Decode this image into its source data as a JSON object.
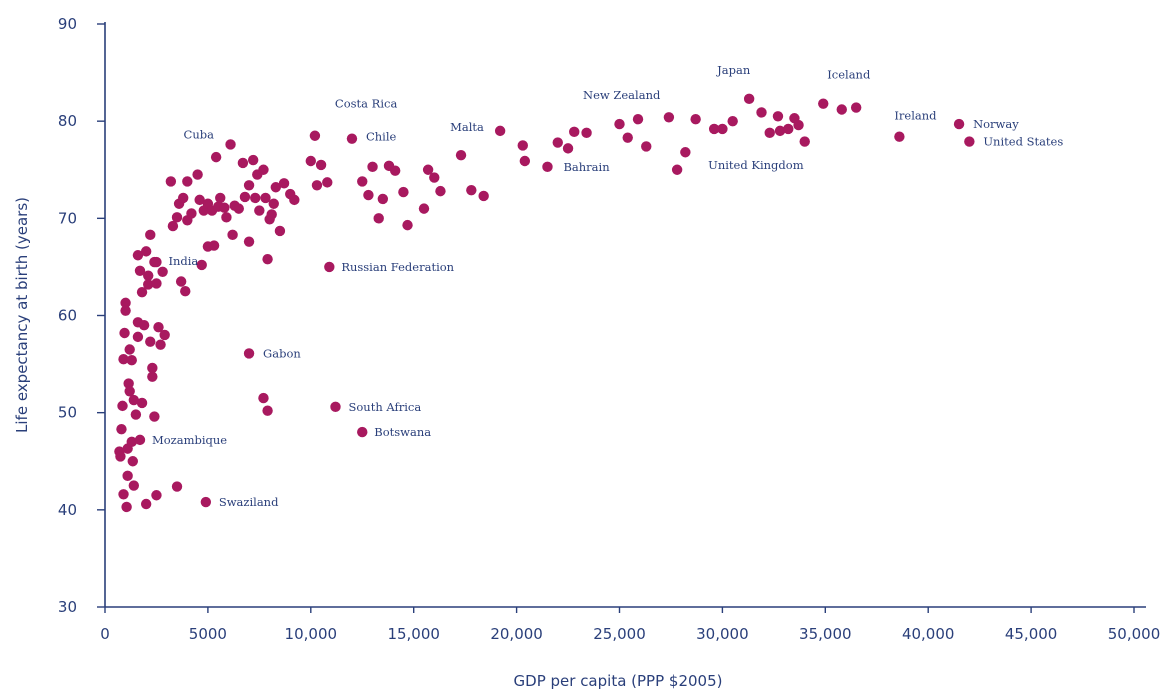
{
  "chart_data": {
    "type": "scatter",
    "xlabel": "GDP per capita (PPP $2005)",
    "ylabel": "Life expectancy at birth (years)",
    "xlim": [
      0,
      50000
    ],
    "ylim": [
      30,
      90
    ],
    "x_ticks": [
      0,
      5000,
      10000,
      15000,
      20000,
      25000,
      30000,
      35000,
      40000,
      45000,
      50000
    ],
    "x_tick_labels": [
      "0",
      "5000",
      "10,000",
      "15,000",
      "20,000",
      "25,000",
      "30,000",
      "35,000",
      "40,000",
      "45,000",
      "50,000"
    ],
    "y_ticks": [
      30,
      40,
      50,
      60,
      70,
      80,
      90
    ],
    "y_tick_labels": [
      "30",
      "40",
      "50",
      "60",
      "70",
      "80",
      "90"
    ],
    "grid": false,
    "marker_color": "#a8195f",
    "axis_color": "#2a3f7a",
    "labeled_points": [
      {
        "label": "Cuba",
        "x": 6100,
        "y": 77.6
      },
      {
        "label": "Costa Rica",
        "x": 10200,
        "y": 78.5
      },
      {
        "label": "Chile",
        "x": 12000,
        "y": 78.2
      },
      {
        "label": "Malta",
        "x": 19200,
        "y": 79.0
      },
      {
        "label": "New Zealand",
        "x": 25900,
        "y": 80.2
      },
      {
        "label": "Japan",
        "x": 31300,
        "y": 82.3
      },
      {
        "label": "Iceland",
        "x": 34900,
        "y": 81.8
      },
      {
        "label": "Ireland",
        "x": 38600,
        "y": 78.4
      },
      {
        "label": "Norway",
        "x": 41500,
        "y": 79.7
      },
      {
        "label": "United States",
        "x": 42000,
        "y": 77.9
      },
      {
        "label": "United Kingdom",
        "x": 29600,
        "y": 79.2
      },
      {
        "label": "Bahrain",
        "x": 21500,
        "y": 75.3
      },
      {
        "label": "India",
        "x": 2500,
        "y": 65.5
      },
      {
        "label": "Russian Federation",
        "x": 10900,
        "y": 65.0
      },
      {
        "label": "Gabon",
        "x": 7000,
        "y": 56.1
      },
      {
        "label": "South Africa",
        "x": 11200,
        "y": 50.6
      },
      {
        "label": "Botswana",
        "x": 12500,
        "y": 48.0
      },
      {
        "label": "Mozambique",
        "x": 1700,
        "y": 47.2
      },
      {
        "label": "Swaziland",
        "x": 4900,
        "y": 40.8
      }
    ],
    "points": [
      [
        700,
        46
      ],
      [
        750,
        45.5
      ],
      [
        800,
        48.3
      ],
      [
        850,
        50.7
      ],
      [
        900,
        41.6
      ],
      [
        900,
        55.5
      ],
      [
        950,
        58.2
      ],
      [
        1000,
        61.3
      ],
      [
        1000,
        60.5
      ],
      [
        1050,
        40.3
      ],
      [
        1100,
        43.5
      ],
      [
        1100,
        46.3
      ],
      [
        1150,
        53
      ],
      [
        1200,
        52.2
      ],
      [
        1200,
        56.5
      ],
      [
        1300,
        55.4
      ],
      [
        1300,
        47
      ],
      [
        1350,
        45
      ],
      [
        1400,
        42.5
      ],
      [
        1400,
        51.3
      ],
      [
        1500,
        49.8
      ],
      [
        1600,
        57.8
      ],
      [
        1600,
        59.3
      ],
      [
        1600,
        66.2
      ],
      [
        1700,
        64.6
      ],
      [
        1800,
        51
      ],
      [
        1800,
        62.4
      ],
      [
        1900,
        59
      ],
      [
        2000,
        40.6
      ],
      [
        2000,
        66.6
      ],
      [
        2100,
        64.1
      ],
      [
        2100,
        63.2
      ],
      [
        2200,
        68.3
      ],
      [
        2200,
        57.3
      ],
      [
        2300,
        53.7
      ],
      [
        2300,
        54.6
      ],
      [
        2400,
        49.6
      ],
      [
        2400,
        65.5
      ],
      [
        2500,
        41.5
      ],
      [
        2500,
        63.3
      ],
      [
        2600,
        58.8
      ],
      [
        2700,
        57
      ],
      [
        2800,
        64.5
      ],
      [
        2900,
        58
      ],
      [
        3200,
        73.8
      ],
      [
        3300,
        69.2
      ],
      [
        3500,
        70.1
      ],
      [
        3500,
        42.4
      ],
      [
        3600,
        71.5
      ],
      [
        3700,
        63.5
      ],
      [
        3800,
        72.1
      ],
      [
        3900,
        62.5
      ],
      [
        4000,
        73.8
      ],
      [
        4000,
        69.8
      ],
      [
        4200,
        70.5
      ],
      [
        4500,
        74.5
      ],
      [
        4600,
        71.9
      ],
      [
        4700,
        65.2
      ],
      [
        4800,
        70.8
      ],
      [
        5000,
        71.5
      ],
      [
        5000,
        67.1
      ],
      [
        5200,
        70.8
      ],
      [
        5300,
        67.2
      ],
      [
        5400,
        76.3
      ],
      [
        5500,
        71.2
      ],
      [
        5600,
        72.1
      ],
      [
        5800,
        71.1
      ],
      [
        5900,
        70.1
      ],
      [
        6200,
        68.3
      ],
      [
        6300,
        71.3
      ],
      [
        6500,
        71
      ],
      [
        6700,
        75.7
      ],
      [
        6800,
        72.2
      ],
      [
        7000,
        73.4
      ],
      [
        7000,
        67.6
      ],
      [
        7200,
        76
      ],
      [
        7300,
        72.1
      ],
      [
        7400,
        74.5
      ],
      [
        7500,
        70.8
      ],
      [
        7700,
        51.5
      ],
      [
        7700,
        75
      ],
      [
        7800,
        72.1
      ],
      [
        7900,
        65.8
      ],
      [
        7900,
        50.2
      ],
      [
        8000,
        69.9
      ],
      [
        8100,
        70.4
      ],
      [
        8200,
        71.5
      ],
      [
        8300,
        73.2
      ],
      [
        8500,
        68.7
      ],
      [
        8700,
        73.6
      ],
      [
        9000,
        72.5
      ],
      [
        9200,
        71.9
      ],
      [
        10000,
        75.9
      ],
      [
        10300,
        73.4
      ],
      [
        10500,
        75.5
      ],
      [
        10800,
        73.7
      ],
      [
        12500,
        73.8
      ],
      [
        12800,
        72.4
      ],
      [
        13000,
        75.3
      ],
      [
        13300,
        70
      ],
      [
        13500,
        72
      ],
      [
        13800,
        75.4
      ],
      [
        14100,
        74.9
      ],
      [
        14500,
        72.7
      ],
      [
        14700,
        69.3
      ],
      [
        15500,
        71
      ],
      [
        15700,
        75
      ],
      [
        16000,
        74.2
      ],
      [
        16300,
        72.8
      ],
      [
        17300,
        76.5
      ],
      [
        17800,
        72.9
      ],
      [
        18400,
        72.3
      ],
      [
        20300,
        77.5
      ],
      [
        20400,
        75.9
      ],
      [
        22000,
        77.8
      ],
      [
        22500,
        77.2
      ],
      [
        22800,
        78.9
      ],
      [
        23400,
        78.8
      ],
      [
        25000,
        79.7
      ],
      [
        25400,
        78.3
      ],
      [
        26300,
        77.4
      ],
      [
        27400,
        80.4
      ],
      [
        27800,
        75
      ],
      [
        28200,
        76.8
      ],
      [
        28700,
        80.2
      ],
      [
        30500,
        80
      ],
      [
        30000,
        79.2
      ],
      [
        31900,
        80.9
      ],
      [
        32300,
        78.8
      ],
      [
        32700,
        80.5
      ],
      [
        32800,
        79
      ],
      [
        33200,
        79.2
      ],
      [
        33500,
        80.3
      ],
      [
        33700,
        79.6
      ],
      [
        34000,
        77.9
      ],
      [
        35800,
        81.2
      ],
      [
        36500,
        81.4
      ]
    ]
  }
}
